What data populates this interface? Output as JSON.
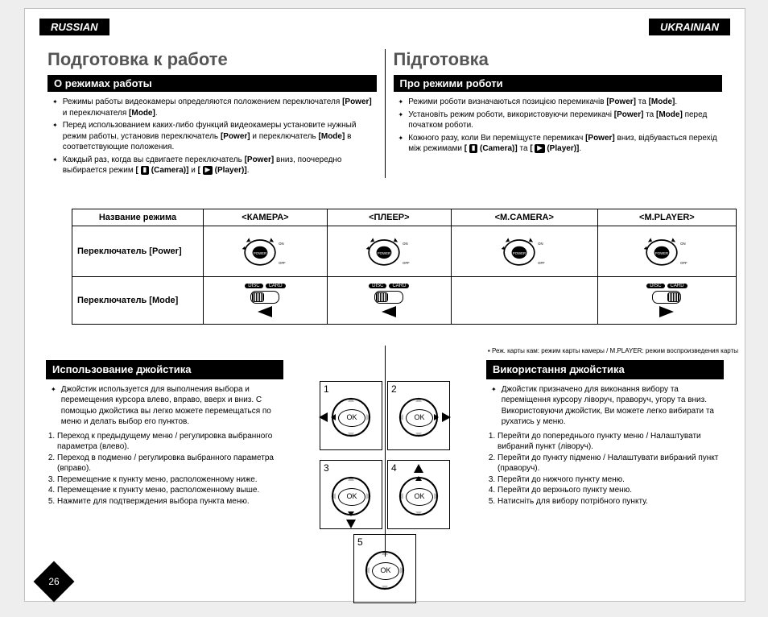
{
  "page": {
    "number": "26",
    "background": "#ffffff",
    "langs": {
      "ru": "RUSSIAN",
      "uk": "UKRAINIAN"
    }
  },
  "ru": {
    "title": "Подготовка к работе",
    "section_modes": "О режимах работы",
    "bullets": [
      "Режимы работы видеокамеры определяются положением переключателя <b>[Power]</b> и переключателя <b>[Mode]</b>.",
      "Перед использованием каких-либо функций видеокамеры установите нужный режим работы, установив переключатель <b>[Power]</b> и переключатель <b>[Mode]</b> в соответствующие положения.",
      "Каждый раз, когда вы сдвигаете переключатель <b>[Power]</b> вниз, поочередно выбирается режим <b>[ <span class='icon-inline'>▮</span> (Camera)]</b> и <b>[ <span class='icon-inline'>▶</span> (Player)]</b>."
    ],
    "section_joy": "Использование джойстика",
    "joy_intro": "Джойстик используется для выполнения выбора и перемещения курсора влево, вправо, вверх и вниз. С помощью джойстика вы легко можете перемещаться по меню и делать выбор его пунктов.",
    "joy_items": [
      "Переход к предыдущему меню / регулировка выбранного параметра (влево).",
      "Переход в подменю / регулировка выбранного параметра (вправо).",
      "Перемещение к пункту меню, расположенному ниже.",
      "Перемещение к пункту меню, расположенному выше.",
      "Нажмите для подтверждения выбора пункта меню."
    ]
  },
  "uk": {
    "title": "Підготовка",
    "section_modes": "Про режими роботи",
    "bullets": [
      "Режими роботи визначаються позицією перемикачів <b>[Power]</b> та <b>[Mode]</b>.",
      "Установіть режим роботи, використовуючи перемикачі <b>[Power]</b> та <b>[Mode]</b> перед початком роботи.",
      "Кожного разу, коли Ви переміщуєте перемикач <b>[Power]</b> вниз, відбувається перехід між режимами <b>[ <span class='icon-inline'>▮</span> (Camera)]</b> та <b>[ <span class='icon-inline'>▶</span> (Player)]</b>."
    ],
    "section_joy": "Використання джойстика",
    "joy_intro": "Джойстик призначено для виконання вибору та переміщення курсору ліворуч, праворуч, угору та вниз. Використовуючи джойстик, Ви можете легко вибирати та рухатись у меню.",
    "joy_items": [
      "Перейти до попереднього пункту меню / Налаштувати вибраний пункт (ліворуч).",
      "Перейти до пункту підменю / Налаштувати вибраний пункт (праворуч).",
      "Перейти до нижчого пункту меню.",
      "Перейти до верхнього пункту меню.",
      "Натисніть для вибору потрібного пункту."
    ]
  },
  "table": {
    "header_row": [
      "Название режима",
      "<КАМЕРА>",
      "<ПЛЕЕР>",
      "<M.CAMERA>",
      "<M.PLAYER>"
    ],
    "row_power": "Переключатель [Power]",
    "row_mode": "Переключатель [Mode]",
    "note": "▪ Реж. карты кам: режим карты камеры / M.PLAYER: режим воспроизведения карты",
    "labels": {
      "disc": "DISC",
      "card": "CARD",
      "power": "POWER",
      "on": "ON",
      "off": "OFF"
    },
    "cols": [
      {
        "knob": "left",
        "arrow": "left"
      },
      {
        "knob": "left",
        "arrow": "left"
      },
      {
        "knob": "right",
        "arrow": "right"
      },
      {
        "knob": "right",
        "arrow": "right"
      }
    ]
  },
  "joystick": {
    "ok": "OK",
    "boxes": [
      {
        "n": "1",
        "big": "left"
      },
      {
        "n": "2",
        "big": "right"
      },
      {
        "n": "3",
        "big": "down"
      },
      {
        "n": "4",
        "big": "up"
      },
      {
        "n": "5",
        "big": "none"
      }
    ]
  }
}
